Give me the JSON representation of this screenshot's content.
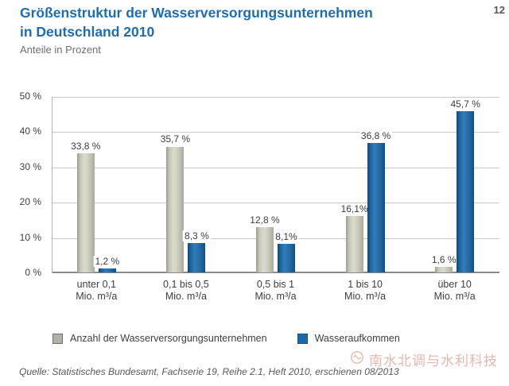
{
  "page": {
    "number": "12"
  },
  "header": {
    "title_line1": "Größenstruktur der Wasserversorgungsunternehmen",
    "title_line2": "in Deutschland 2010",
    "subtitle": "Anteile in Prozent"
  },
  "chart_data": {
    "type": "bar",
    "title": "Größenstruktur der Wasserversorgungsunternehmen in Deutschland 2010",
    "subtitle": "Anteile in Prozent",
    "categories": [
      "unter 0,1",
      "0,1 bis 0,5",
      "0,5 bis 1",
      "1 bis 10",
      "über 10"
    ],
    "category_unit": "Mio. m³/a",
    "series": [
      {
        "name": "Anzahl der Wasserversorgungsunternehmen",
        "color": "#b7b8aa",
        "values": [
          33.8,
          35.7,
          12.8,
          16.1,
          1.6
        ],
        "value_labels": [
          "33,8 %",
          "35,7 %",
          "12,8 %",
          "16,1%",
          "1,6 %"
        ]
      },
      {
        "name": "Wasseraufkommen",
        "color": "#1d68a7",
        "values": [
          1.2,
          8.3,
          8.1,
          36.8,
          45.7
        ],
        "value_labels": [
          "1,2 %",
          "8,3 %",
          "8,1%",
          "36,8 %",
          "45,7 %"
        ]
      }
    ],
    "ylim": [
      0,
      50
    ],
    "ytick_labels": [
      "50 %",
      "40 %",
      "30 %",
      "20 %",
      "10 %",
      "0 %"
    ],
    "grid": true,
    "legend_position": "bottom"
  },
  "footer": {
    "source": "Quelle: Statistisches Bundesamt, Fachserie 19, Reihe 2.1, Heft 2010, erschienen 08/2013"
  },
  "watermark": {
    "text": "南水北调与水利科技",
    "color": "#dd948b"
  },
  "colors": {
    "title": "#1e6db1",
    "subtitle": "#706f6f",
    "axis_text": "#3d3d3c",
    "grid": "#c9c9c9",
    "axis": "#8a8a8a",
    "bar_gray": "#b7b8aa",
    "bar_blue": "#1d68a7"
  }
}
